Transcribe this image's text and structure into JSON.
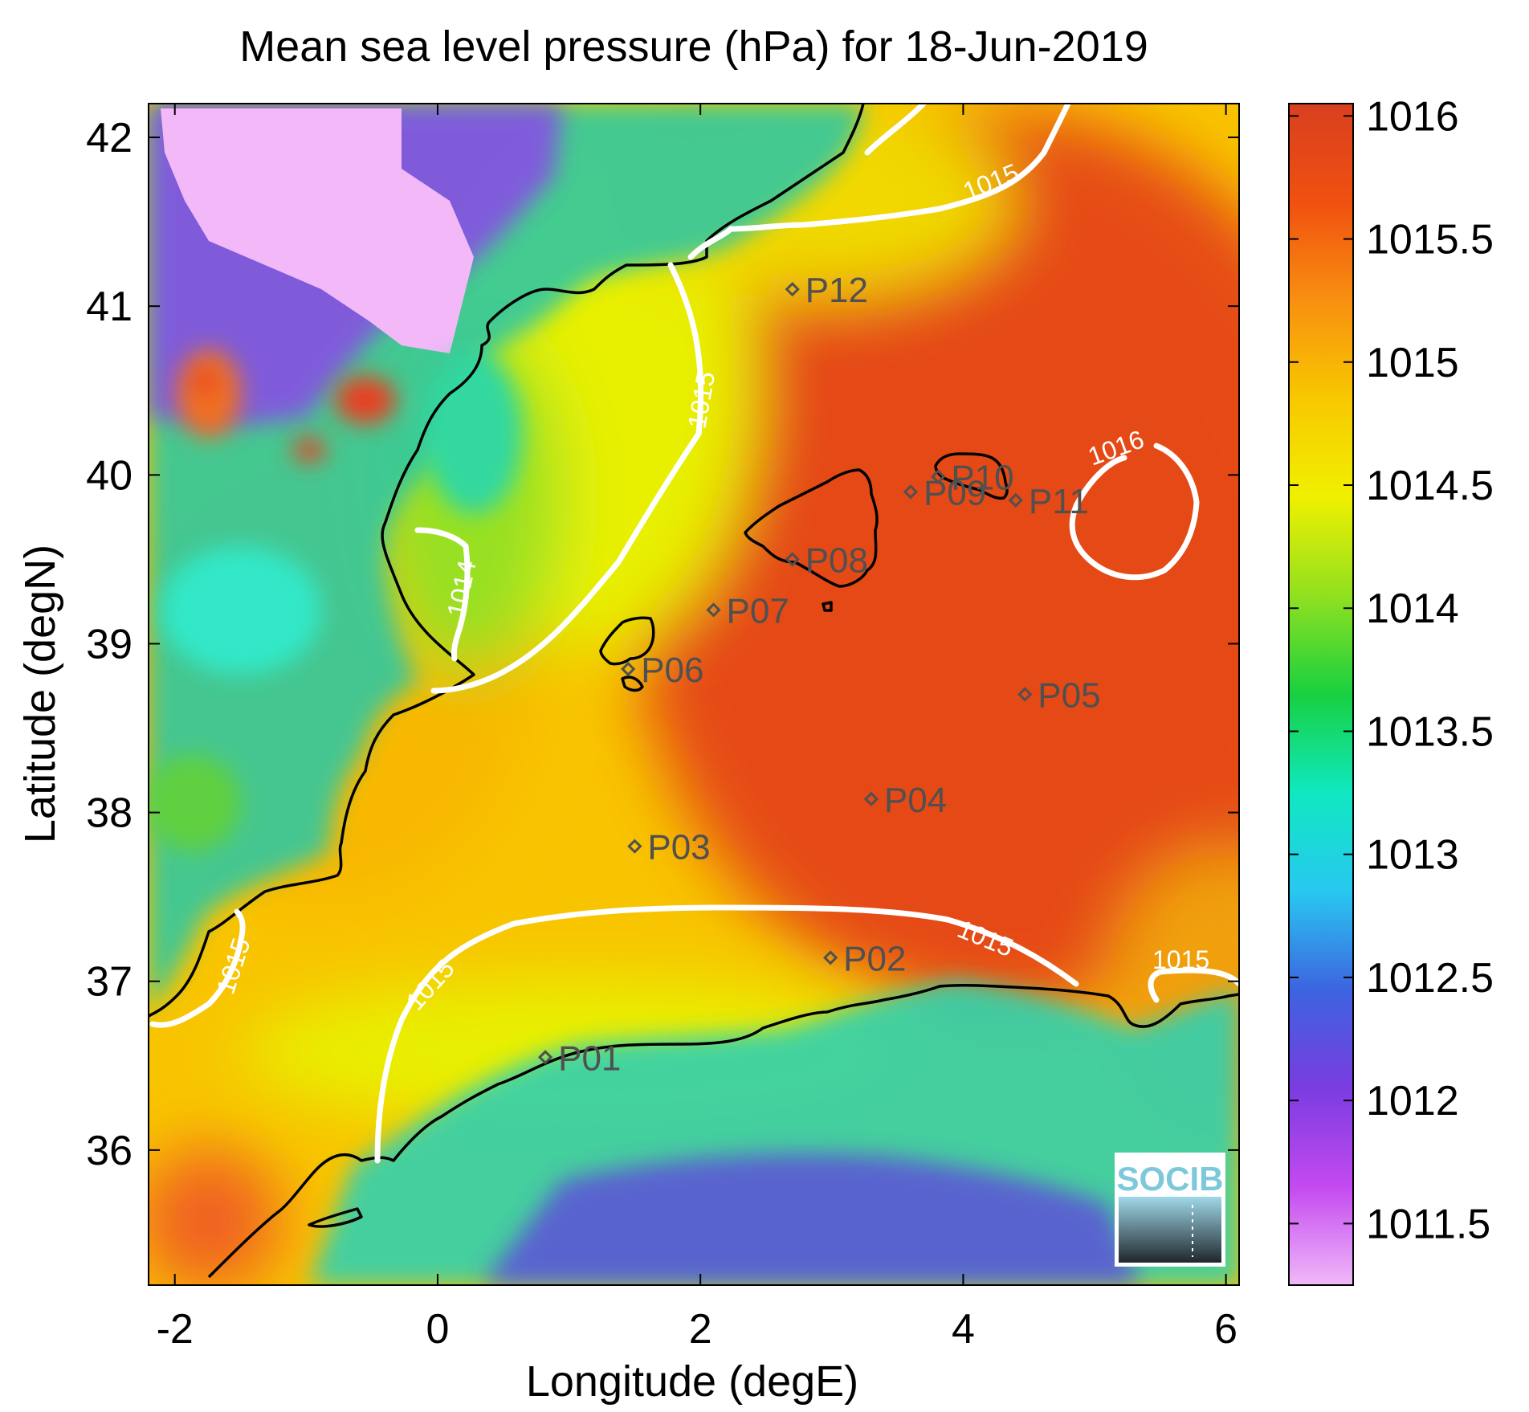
{
  "title": "Mean sea level pressure (hPa) for 18-Jun-2019",
  "axes": {
    "xlabel": "Longitude (degE)",
    "ylabel": "Latitude (degN)",
    "xticks": [
      -2,
      0,
      2,
      4,
      6
    ],
    "xtick_labels": [
      "-2",
      "0",
      "2",
      "4",
      "6"
    ],
    "yticks": [
      36,
      37,
      38,
      39,
      40,
      41,
      42
    ],
    "ytick_labels": [
      "36",
      "37",
      "38",
      "39",
      "40",
      "41",
      "42"
    ],
    "xlim": [
      -2.2,
      6.1
    ],
    "ylim": [
      35.2,
      42.2
    ]
  },
  "colorbar": {
    "ticks": [
      1011.5,
      1012,
      1012.5,
      1013,
      1013.5,
      1014,
      1014.5,
      1015,
      1015.5,
      1016
    ],
    "tick_labels": [
      "1011.5",
      "1012",
      "1012.5",
      "1013",
      "1013.5",
      "1014",
      "1014.5",
      "1015",
      "1015.5",
      "1016"
    ],
    "range": [
      1011.25,
      1016.05
    ],
    "colors": [
      "#f0b8f8",
      "#c44af0",
      "#7a3ce0",
      "#3c64e0",
      "#28c8f0",
      "#10e8c0",
      "#18d040",
      "#90e020",
      "#f0f000",
      "#f8c800",
      "#f89010",
      "#f05010",
      "#d84020"
    ]
  },
  "contours": [
    {
      "label": "1014",
      "level": 1014
    },
    {
      "label": "1015",
      "level": 1015
    },
    {
      "label": "1016",
      "level": 1016
    }
  ],
  "stations": [
    {
      "label": "P01",
      "lon": 0.82,
      "lat": 36.55
    },
    {
      "label": "P02",
      "lon": 2.99,
      "lat": 37.14
    },
    {
      "label": "P03",
      "lon": 1.5,
      "lat": 37.8
    },
    {
      "label": "P04",
      "lon": 3.3,
      "lat": 38.08
    },
    {
      "label": "P05",
      "lon": 4.47,
      "lat": 38.7
    },
    {
      "label": "P06",
      "lon": 1.45,
      "lat": 38.85
    },
    {
      "label": "P07",
      "lon": 2.1,
      "lat": 39.2
    },
    {
      "label": "P08",
      "lon": 2.7,
      "lat": 39.5
    },
    {
      "label": "P09",
      "lon": 3.6,
      "lat": 39.9
    },
    {
      "label": "P10",
      "lon": 3.81,
      "lat": 39.99
    },
    {
      "label": "P11",
      "lon": 4.4,
      "lat": 39.85
    },
    {
      "label": "P12",
      "lon": 2.7,
      "lat": 41.1
    }
  ],
  "logo": {
    "text": "SOCIB"
  }
}
